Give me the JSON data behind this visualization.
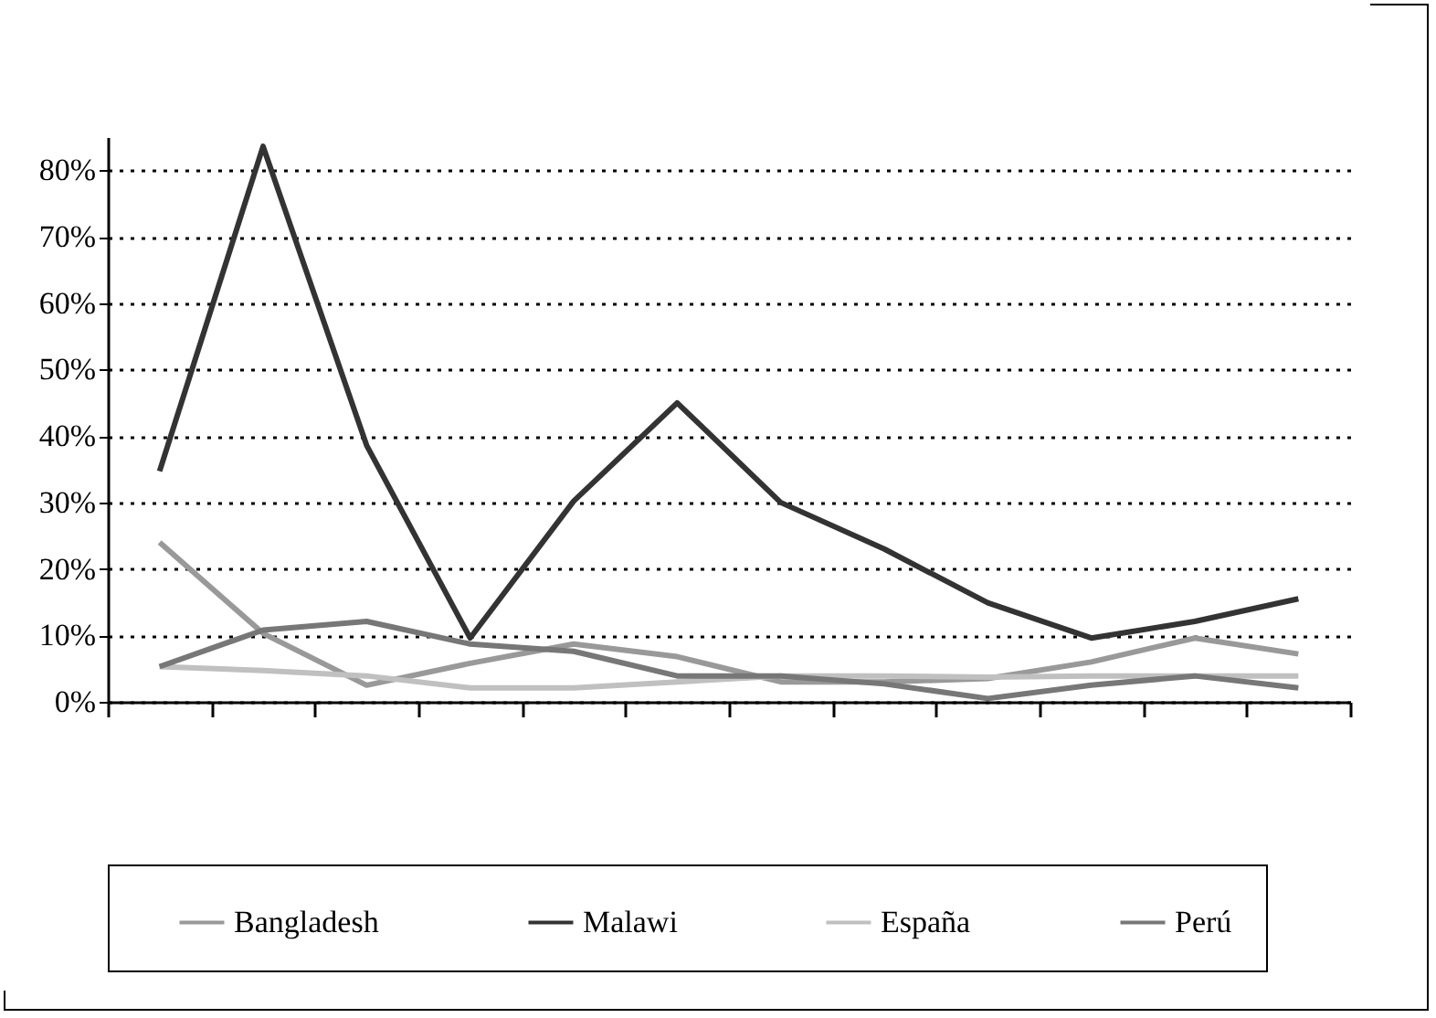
{
  "chart_data": {
    "type": "line",
    "categories": [
      null,
      null,
      null,
      null,
      null,
      null,
      null,
      null,
      null,
      null,
      null,
      null
    ],
    "series": [
      {
        "name": "Bangladesh",
        "color": "#999999",
        "values": [
          24,
          10.3,
          2.5,
          5.8,
          8.7,
          6.8,
          3,
          3,
          3.5,
          6,
          9.6,
          7.2
        ]
      },
      {
        "name": "Malawi",
        "color": "#333333",
        "values": [
          34.7,
          83.6,
          38.6,
          9.6,
          30.2,
          45,
          30,
          23,
          14.9,
          9.6,
          12.1,
          15.5
        ]
      },
      {
        "name": "España",
        "color": "#c0c0c0",
        "values": [
          5.3,
          4.7,
          3.9,
          2.1,
          2.1,
          3,
          3.9,
          3.9,
          3.7,
          3.9,
          3.9,
          3.9
        ]
      },
      {
        "name": "Perú",
        "color": "#777777",
        "values": [
          5.3,
          10.8,
          12.1,
          8.7,
          7.6,
          3.9,
          3.9,
          2.7,
          0.5,
          2.5,
          3.9,
          2.1
        ]
      }
    ],
    "ylim": [
      0,
      85
    ],
    "yticks": [
      {
        "value": 0,
        "label": "0%"
      },
      {
        "value": 10,
        "label": "10%"
      },
      {
        "value": 20,
        "label": "20%"
      },
      {
        "value": 30,
        "label": "30%"
      },
      {
        "value": 40,
        "label": "40%"
      },
      {
        "value": 50,
        "label": "50%"
      },
      {
        "value": 60,
        "label": "60%"
      },
      {
        "value": 70,
        "label": "70%"
      },
      {
        "value": 80,
        "label": "80%"
      }
    ],
    "grid": "y",
    "legend": "bottom",
    "tick_labels": "y"
  }
}
